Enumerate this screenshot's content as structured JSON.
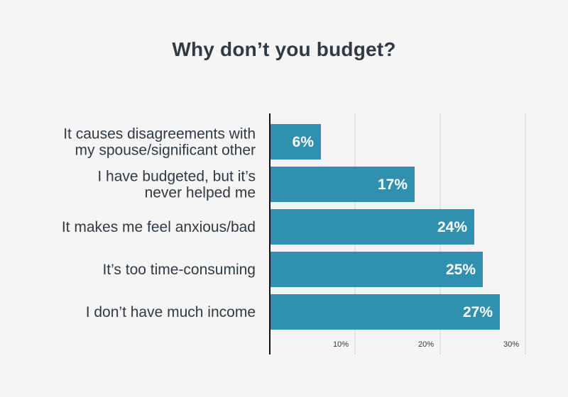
{
  "chart_data": {
    "type": "bar",
    "orientation": "horizontal",
    "title": "Why don’t you budget?",
    "categories": [
      [
        "It causes disagreements with",
        "my spouse/significant other"
      ],
      [
        "I have budgeted, but it’s",
        "never helped me"
      ],
      [
        "It makes me feel anxious/bad"
      ],
      [
        "It’s too time-consuming"
      ],
      [
        "I don’t have much income"
      ]
    ],
    "values": [
      6,
      17,
      24,
      25,
      27
    ],
    "value_labels": [
      "6%",
      "17%",
      "24%",
      "25%",
      "27%"
    ],
    "xlim": [
      0,
      30
    ],
    "xticks": [
      10,
      20,
      30
    ],
    "xtick_labels": [
      "10%",
      "20%",
      "30%"
    ],
    "grid": true,
    "legend": "none",
    "bar_color": "#3090b0",
    "axis_color": "#111111",
    "grid_color": "#d0d0d0"
  }
}
